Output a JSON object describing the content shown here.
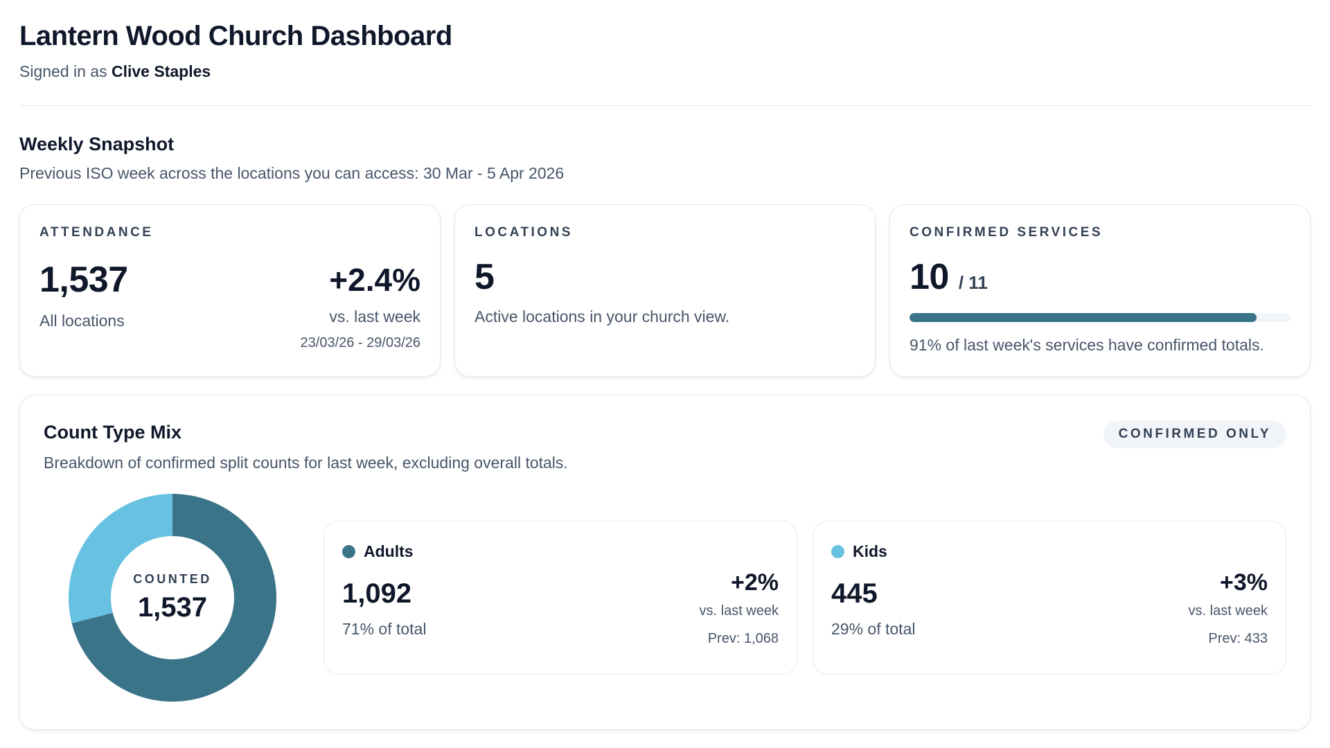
{
  "header": {
    "title": "Lantern Wood Church Dashboard",
    "signed_in_prefix": "Signed in as",
    "user_name": "Clive Staples"
  },
  "snapshot": {
    "title": "Weekly Snapshot",
    "subtitle": "Previous ISO week across the locations you can access: 30 Mar - 5 Apr 2026"
  },
  "attendance": {
    "label": "ATTENDANCE",
    "value": "1,537",
    "caption": "All locations",
    "change": "+2.4%",
    "change_caption": "vs. last week",
    "compare_range": "23/03/26 - 29/03/26"
  },
  "locations": {
    "label": "LOCATIONS",
    "value": "5",
    "caption": "Active locations in your church view."
  },
  "services": {
    "label": "CONFIRMED SERVICES",
    "value": "10",
    "total": "/ 11",
    "progress_fraction": 0.91,
    "caption": "91% of last week's services have confirmed totals.",
    "bar_color": "#3a7488"
  },
  "mix": {
    "title": "Count Type Mix",
    "subtitle": "Breakdown of confirmed split counts for last week, excluding overall totals.",
    "filter_pill": "CONFIRMED ONLY",
    "donut_label": "COUNTED",
    "donut_total": "1,537",
    "segments": [
      {
        "name": "Adults",
        "value": "1,092",
        "share": "71% of total",
        "change": "+2%",
        "change_caption": "vs. last week",
        "prev": "Prev: 1,068",
        "color": "#3a7488",
        "count": 1092
      },
      {
        "name": "Kids",
        "value": "445",
        "share": "29% of total",
        "change": "+3%",
        "change_caption": "vs. last week",
        "prev": "Prev: 433",
        "color": "#67c1e1",
        "count": 445
      }
    ]
  }
}
